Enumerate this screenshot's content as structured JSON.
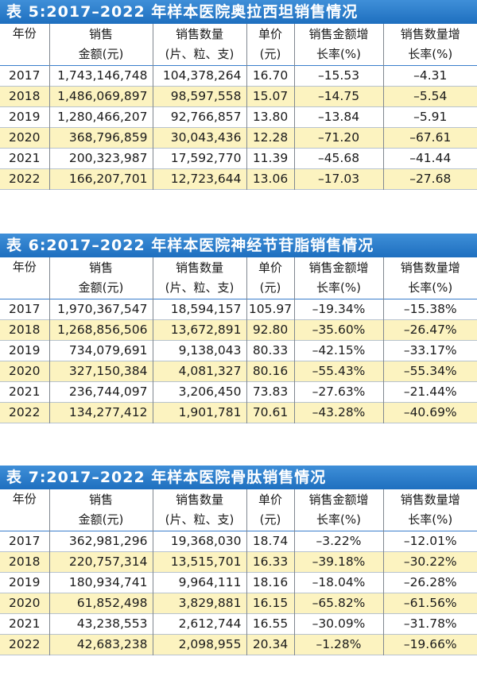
{
  "headers": {
    "year": "年份",
    "sales_l1": "销售",
    "sales_l2": "金额(元)",
    "qty_l1": "销售数量",
    "qty_l2": "(片、粒、支)",
    "price_l1": "单价",
    "price_l2": "(元)",
    "sg_l1": "销售金额增",
    "sg_l2": "长率(%)",
    "qg_l1": "销售数量增",
    "qg_l2": "长率(%)"
  },
  "tables": [
    {
      "title": "表 5:2017–2022 年样本医院奥拉西坦销售情况",
      "rows": [
        {
          "year": "2017",
          "sales": "1,743,146,748",
          "qty": "104,378,264",
          "price": "16.70",
          "sales_growth": "–15.53",
          "qty_growth": "–4.31"
        },
        {
          "year": "2018",
          "sales": "1,486,069,897",
          "qty": "98,597,558",
          "price": "15.07",
          "sales_growth": "–14.75",
          "qty_growth": "–5.54"
        },
        {
          "year": "2019",
          "sales": "1,280,466,207",
          "qty": "92,766,857",
          "price": "13.80",
          "sales_growth": "–13.84",
          "qty_growth": "–5.91"
        },
        {
          "year": "2020",
          "sales": "368,796,859",
          "qty": "30,043,436",
          "price": "12.28",
          "sales_growth": "–71.20",
          "qty_growth": "–67.61"
        },
        {
          "year": "2021",
          "sales": "200,323,987",
          "qty": "17,592,770",
          "price": "11.39",
          "sales_growth": "–45.68",
          "qty_growth": "–41.44"
        },
        {
          "year": "2022",
          "sales": "166,207,701",
          "qty": "12,723,644",
          "price": "13.06",
          "sales_growth": "–17.03",
          "qty_growth": "–27.68"
        }
      ]
    },
    {
      "title": "表 6:2017–2022 年样本医院神经节苷脂销售情况",
      "rows": [
        {
          "year": "2017",
          "sales": "1,970,367,547",
          "qty": "18,594,157",
          "price": "105.97",
          "sales_growth": "–19.34%",
          "qty_growth": "–15.38%"
        },
        {
          "year": "2018",
          "sales": "1,268,856,506",
          "qty": "13,672,891",
          "price": "92.80",
          "sales_growth": "–35.60%",
          "qty_growth": "–26.47%"
        },
        {
          "year": "2019",
          "sales": "734,079,691",
          "qty": "9,138,043",
          "price": "80.33",
          "sales_growth": "–42.15%",
          "qty_growth": "–33.17%"
        },
        {
          "year": "2020",
          "sales": "327,150,384",
          "qty": "4,081,327",
          "price": "80.16",
          "sales_growth": "–55.43%",
          "qty_growth": "–55.34%"
        },
        {
          "year": "2021",
          "sales": "236,744,097",
          "qty": "3,206,450",
          "price": "73.83",
          "sales_growth": "–27.63%",
          "qty_growth": "–21.44%"
        },
        {
          "year": "2022",
          "sales": "134,277,412",
          "qty": "1,901,781",
          "price": "70.61",
          "sales_growth": "–43.28%",
          "qty_growth": "–40.69%"
        }
      ]
    },
    {
      "title": "表 7:2017–2022 年样本医院骨肽销售情况",
      "rows": [
        {
          "year": "2017",
          "sales": "362,981,296",
          "qty": "19,368,030",
          "price": "18.74",
          "sales_growth": "–3.22%",
          "qty_growth": "–12.01%"
        },
        {
          "year": "2018",
          "sales": "220,757,314",
          "qty": "13,515,701",
          "price": "16.33",
          "sales_growth": "–39.18%",
          "qty_growth": "–30.22%"
        },
        {
          "year": "2019",
          "sales": "180,934,741",
          "qty": "9,964,111",
          "price": "18.16",
          "sales_growth": "–18.04%",
          "qty_growth": "–26.28%"
        },
        {
          "year": "2020",
          "sales": "61,852,498",
          "qty": "3,829,881",
          "price": "16.15",
          "sales_growth": "–65.82%",
          "qty_growth": "–61.56%"
        },
        {
          "year": "2021",
          "sales": "43,238,553",
          "qty": "2,612,744",
          "price": "16.55",
          "sales_growth": "–30.09%",
          "qty_growth": "–31.78%"
        },
        {
          "year": "2022",
          "sales": "42,683,238",
          "qty": "2,098,955",
          "price": "20.34",
          "sales_growth": "–1.28%",
          "qty_growth": "–19.66%"
        }
      ]
    }
  ]
}
